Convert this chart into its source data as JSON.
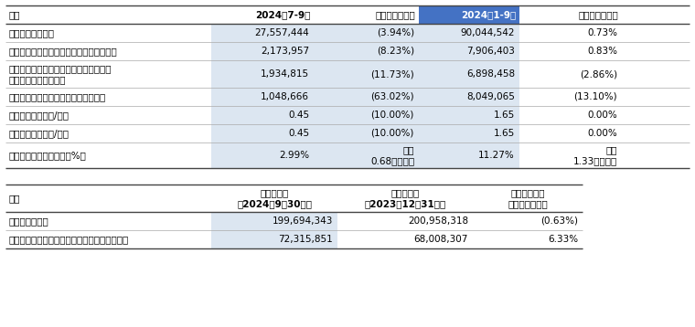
{
  "table1_header": [
    "项目",
    "2024年7-9月",
    "比上年同期增减",
    "2024年1-9月",
    "比上年同期增减"
  ],
  "table1_rows": [
    [
      "营业收入（千元）",
      "27,557,444",
      "(3.94%)",
      "90,044,542",
      "0.73%"
    ],
    [
      "归属于上市公司普通股东的净利润（千元）",
      "2,173,957",
      "(8.23%)",
      "7,906,403",
      "0.83%"
    ],
    [
      "归属于上市公司普通股东的扣除非经常性\n损益的净利润（千元）",
      "1,934,815",
      "(11.73%)",
      "6,898,458",
      "(2.86%)"
    ],
    [
      "经营活动产生的现金流量净额（千元）",
      "1,048,666",
      "(63.02%)",
      "8,049,065",
      "(13.10%)"
    ],
    [
      "基本每股收益（元/股）",
      "0.45",
      "(10.00%)",
      "1.65",
      "0.00%"
    ],
    [
      "稀释每股收益（元/股）",
      "0.45",
      "(10.00%)",
      "1.65",
      "0.00%"
    ],
    [
      "加权平均净资产收益率（%）",
      "2.99%",
      "下降\n0.68个百分点",
      "11.27%",
      "下降\n1.33个百分点"
    ]
  ],
  "table2_header": [
    "项目",
    "本报告期末\n（2024年9月30日）",
    "上年度期末\n（2023年12月31日）",
    "本报告期末比\n上年度期末增减"
  ],
  "table2_rows": [
    [
      "总资产（千元）",
      "199,694,343",
      "200,958,318",
      "(0.63%)"
    ],
    [
      "归属于上市公司普通股东的所有者权益（千元）",
      "72,315,851",
      "68,008,307",
      "6.33%"
    ]
  ],
  "header_highlight_color": "#4472c4",
  "light_blue": "#dce6f1",
  "bg_color": "#ffffff",
  "font_size": 7.5,
  "header_font_size": 7.5
}
